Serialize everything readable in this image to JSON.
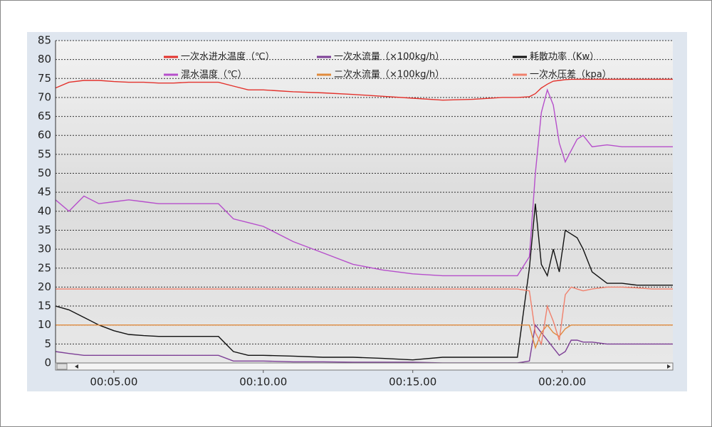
{
  "chart_data": {
    "type": "line",
    "x": [
      3.05,
      3.5,
      4,
      4.5,
      5,
      5.5,
      6,
      6.5,
      7,
      7.5,
      8,
      8.5,
      9,
      9.5,
      10,
      11,
      12,
      13,
      14,
      15,
      16,
      17,
      18,
      18.5,
      18.9,
      19.1,
      19.3,
      19.5,
      19.7,
      19.9,
      20.1,
      20.3,
      20.5,
      20.7,
      21,
      21.5,
      22,
      22.5,
      23,
      23.7
    ],
    "series": [
      {
        "name": "一次水进水温度（℃）",
        "color": "#e3322c",
        "values": [
          72.5,
          74,
          74.5,
          74.5,
          74.2,
          74,
          74,
          73.8,
          73.8,
          74,
          74,
          74,
          73,
          72,
          72,
          71.5,
          71.2,
          70.8,
          70.3,
          69.8,
          69.3,
          69.5,
          70,
          70,
          70.2,
          71,
          72.5,
          73.5,
          74.3,
          74.5,
          74.7,
          74.8,
          74.8,
          74.8,
          74.8,
          74.8,
          74.8,
          74.8,
          74.8,
          74.8
        ]
      },
      {
        "name": "一次水流量（×100kg/h）",
        "color": "#7d3f96",
        "values": [
          3,
          2.5,
          2,
          2,
          2,
          2,
          2,
          2,
          2,
          2,
          2,
          2,
          0.5,
          0.5,
          0.5,
          0.3,
          0.3,
          0.2,
          0.2,
          0.2,
          0,
          0,
          0,
          0,
          0.5,
          10,
          8,
          6,
          4,
          2,
          3,
          6,
          6,
          5.5,
          5.5,
          5,
          5,
          5,
          5,
          5
        ]
      },
      {
        "name": "耗散功率（Kw）",
        "color": "#111111",
        "values": [
          15,
          14,
          12,
          10,
          8.5,
          7.5,
          7.2,
          7,
          7,
          7,
          7,
          7,
          3,
          2,
          2,
          1.8,
          1.5,
          1.5,
          1.2,
          0.8,
          1.5,
          1.5,
          1.5,
          1.5,
          25,
          42,
          26,
          23,
          30,
          24,
          35,
          34,
          33,
          30,
          24,
          21,
          21,
          20.5,
          20.5,
          20.5
        ]
      },
      {
        "name": "混水温度（℃）",
        "color": "#b64fcb",
        "values": [
          43,
          40,
          44,
          42,
          42.5,
          43,
          42.5,
          42,
          42,
          42,
          42,
          42,
          38,
          37,
          36,
          32,
          29,
          26,
          24.5,
          23.5,
          23,
          23,
          23,
          23,
          28,
          50,
          66,
          72,
          68,
          58,
          53,
          56,
          59,
          60,
          57,
          57.5,
          57,
          57,
          57,
          57
        ]
      },
      {
        "name": "二次水流量（×100kg/h）",
        "color": "#e08a3c",
        "values": [
          10,
          10,
          10,
          10,
          10,
          10,
          10,
          10,
          10,
          10,
          10,
          10,
          10,
          10,
          10,
          10,
          10,
          10,
          10,
          10,
          10,
          10,
          10,
          10,
          10,
          4,
          8,
          10,
          8,
          7,
          9,
          10,
          10,
          10,
          10,
          10,
          10,
          10,
          10,
          10
        ]
      },
      {
        "name": "一次水压差（kpa）",
        "color": "#f0806c",
        "values": [
          19.5,
          19.5,
          19.5,
          19.5,
          19.5,
          19.5,
          19.5,
          19.5,
          19.5,
          19.5,
          19.5,
          19.5,
          19.5,
          19.5,
          19.5,
          19.5,
          19.5,
          19.5,
          19.5,
          19.5,
          19.5,
          19.5,
          19.5,
          19.5,
          19,
          8,
          5,
          15,
          11,
          6,
          18,
          20,
          19.5,
          19,
          19.5,
          20,
          20,
          19.8,
          19.5,
          19.5
        ]
      }
    ],
    "xlim": [
      3.05,
      23.7
    ],
    "xticks": [
      {
        "value": 5,
        "label": "00:05.00"
      },
      {
        "value": 10,
        "label": "00:10.00"
      },
      {
        "value": 15,
        "label": "00:15.00"
      },
      {
        "value": 20,
        "label": "00:20.00"
      }
    ],
    "ylim": [
      0,
      85
    ],
    "yticks": [
      0,
      5,
      10,
      15,
      20,
      25,
      30,
      35,
      40,
      45,
      50,
      55,
      60,
      65,
      70,
      75,
      80,
      85
    ],
    "grid": true,
    "legend": "top"
  }
}
